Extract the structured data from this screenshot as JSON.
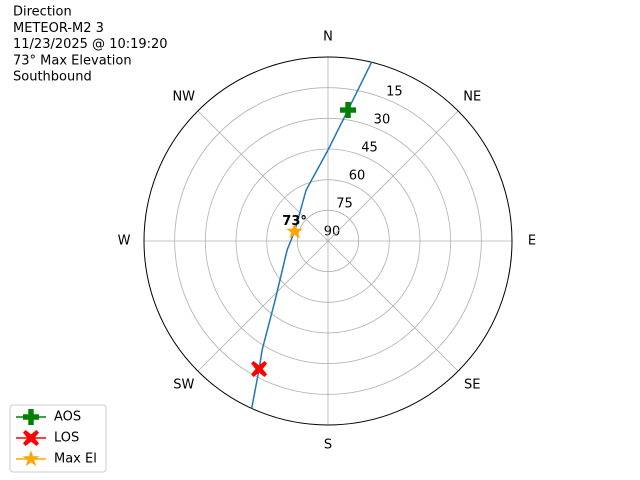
{
  "chart_data": {
    "type": "polar",
    "title_lines": [
      "Direction",
      "METEOR-M2 3",
      "11/23/2025 @ 10:19:20",
      "73° Max Elevation",
      "Southbound"
    ],
    "theta_zero": "N",
    "theta_direction": "clockwise",
    "theta_ticks": [
      {
        "value": 0,
        "label": "N"
      },
      {
        "value": 45,
        "label": "NE"
      },
      {
        "value": 90,
        "label": "E"
      },
      {
        "value": 135,
        "label": "SE"
      },
      {
        "value": 180,
        "label": "S"
      },
      {
        "value": 225,
        "label": "SW"
      },
      {
        "value": 270,
        "label": "W"
      },
      {
        "value": 315,
        "label": "NW"
      }
    ],
    "rlim": [
      90,
      0
    ],
    "rticks": [
      15,
      30,
      45,
      60,
      75,
      90
    ],
    "grid": true,
    "track": {
      "color": "#1f77b4",
      "azimuth": [
        13.7,
        8.7,
        0,
        336.7,
        286,
        257.6,
        221.9,
        211.2,
        208.3,
        204.5
      ],
      "elevation": [
        0,
        25.2,
        45.5,
        62.9,
        73,
        69.5,
        51.3,
        27.9,
        18.9,
        0
      ]
    },
    "markers": [
      {
        "name": "AOS",
        "color": "green",
        "marker": "plus",
        "azimuth": 8.7,
        "elevation": 25.2
      },
      {
        "name": "LOS",
        "color": "red",
        "marker": "x",
        "azimuth": 208.3,
        "elevation": 18.9
      },
      {
        "name": "Max El",
        "color": "orange",
        "marker": "star",
        "azimuth": 286,
        "elevation": 73
      }
    ],
    "annotation": {
      "text": "73°",
      "azimuth": 286,
      "elevation": 73
    },
    "legend": "lower left"
  }
}
